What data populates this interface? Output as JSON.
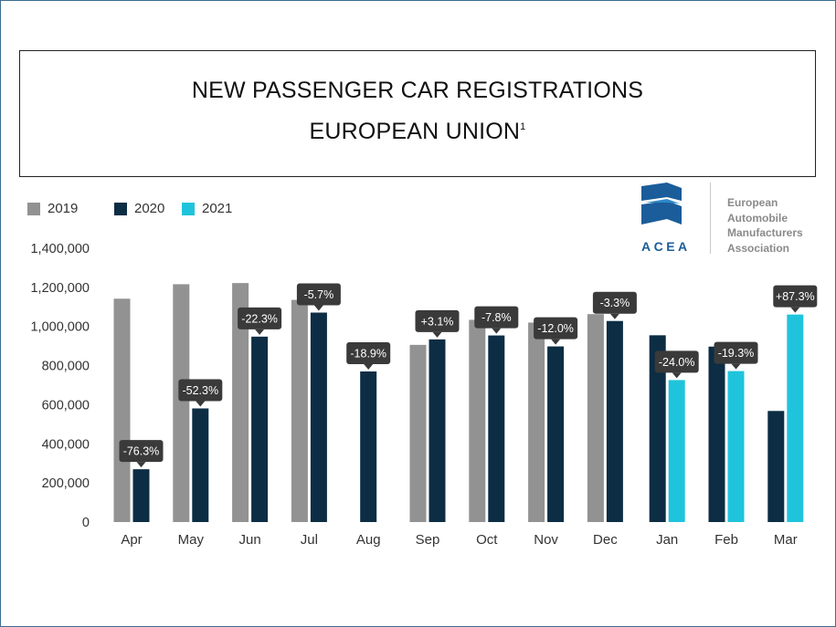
{
  "title": {
    "line1": "NEW PASSENGER CAR REGISTRATIONS",
    "line2": "EUROPEAN UNION",
    "footnote_mark": "1"
  },
  "logo": {
    "acronym": "ACEA",
    "name_lines": [
      "European",
      "Automobile",
      "Manufacturers",
      "Association"
    ],
    "colors": {
      "mark_dark": "#1b5d9a",
      "mark_light": "#2f88c8"
    }
  },
  "chart_data": {
    "type": "bar",
    "title": "NEW PASSENGER CAR REGISTRATIONS EUROPEAN UNION",
    "xlabel": "",
    "ylabel": "",
    "ylim": [
      0,
      1400000
    ],
    "yticks": [
      0,
      200000,
      400000,
      600000,
      800000,
      1000000,
      1200000,
      1400000
    ],
    "ytick_labels": [
      "0",
      "200,000",
      "400,000",
      "600,000",
      "800,000",
      "1,000,000",
      "1,200,000",
      "1,400,000"
    ],
    "grid": false,
    "legend_position": "top-left",
    "categories": [
      "Apr",
      "May",
      "Jun",
      "Jul",
      "Aug",
      "Sep",
      "Oct",
      "Nov",
      "Dec",
      "Jan",
      "Feb",
      "Mar"
    ],
    "series": [
      {
        "name": "2019",
        "color": "#929292",
        "values": [
          1142000,
          1216000,
          1222000,
          1136000,
          null,
          906000,
          1034000,
          1020000,
          1063000,
          null,
          null,
          null
        ]
      },
      {
        "name": "2020",
        "color": "#0c2d44",
        "values": [
          270000,
          581000,
          948000,
          1071000,
          770000,
          934000,
          954000,
          898000,
          1028000,
          955000,
          897000,
          568000
        ]
      },
      {
        "name": "2021",
        "color": "#1fc4dc",
        "values": [
          null,
          null,
          null,
          null,
          null,
          null,
          null,
          null,
          null,
          726000,
          772000,
          1061000
        ]
      }
    ],
    "annotations": [
      {
        "category": "Apr",
        "series": "2020",
        "label": "-76.3%"
      },
      {
        "category": "May",
        "series": "2020",
        "label": "-52.3%"
      },
      {
        "category": "Jun",
        "series": "2020",
        "label": "-22.3%"
      },
      {
        "category": "Jul",
        "series": "2020",
        "label": "-5.7%"
      },
      {
        "category": "Aug",
        "series": "2020",
        "label": "-18.9%"
      },
      {
        "category": "Sep",
        "series": "2020",
        "label": "+3.1%"
      },
      {
        "category": "Oct",
        "series": "2020",
        "label": "-7.8%"
      },
      {
        "category": "Nov",
        "series": "2020",
        "label": "-12.0%"
      },
      {
        "category": "Dec",
        "series": "2020",
        "label": "-3.3%"
      },
      {
        "category": "Jan",
        "series": "2021",
        "label": "-24.0%"
      },
      {
        "category": "Feb",
        "series": "2021",
        "label": "-19.3%"
      },
      {
        "category": "Mar",
        "series": "2021",
        "label": "+87.3%"
      }
    ],
    "annotation_color": "#3a3a3a"
  }
}
